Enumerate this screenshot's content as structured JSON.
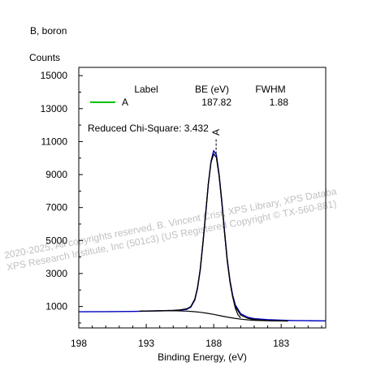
{
  "chart_data": {
    "type": "line",
    "title": "B, boron",
    "ylabel": "Counts",
    "xlabel": "Binding Energy, (eV)",
    "xlim": [
      198,
      179.7
    ],
    "x_reversed": true,
    "ylim": [
      -300,
      15500
    ],
    "x_ticks": [
      198,
      193,
      188,
      183
    ],
    "y_ticks": [
      1000,
      3000,
      5000,
      7000,
      9000,
      11000,
      13000,
      15000
    ],
    "legend": {
      "headers": [
        "Label",
        "BE (eV)",
        "FWHM"
      ],
      "rows": [
        {
          "label": "A",
          "be": "187.82",
          "fwhm": "1.88",
          "color": "#00c000"
        }
      ]
    },
    "reduced_chi_square": "Reduced Chi-Square: 3.432",
    "peak_marker": "A",
    "watermark": [
      "2020-2025,  All copyrights reserved,   B. Vincent Crist,  XPS Library, XPS Databa",
      "XPS Research Institute, Inc (501c3)   (US Registered Copyright © TX-560-881)"
    ],
    "series": [
      {
        "role": "data",
        "color": "#0000c0",
        "x": [
          198,
          196,
          194,
          193,
          192,
          191,
          190.5,
          190,
          189.7,
          189.4,
          189.2,
          189,
          188.8,
          188.6,
          188.4,
          188.2,
          188,
          187.8,
          187.6,
          187.4,
          187.2,
          187,
          186.8,
          186.6,
          186.4,
          186,
          185.5,
          185,
          184,
          183,
          182,
          181,
          179.7
        ],
        "y": [
          680,
          690,
          700,
          720,
          740,
          760,
          780,
          820,
          960,
          1400,
          2100,
          3200,
          4800,
          6600,
          8400,
          9800,
          10450,
          10200,
          9000,
          7400,
          5600,
          3900,
          2600,
          1700,
          1100,
          560,
          350,
          260,
          200,
          170,
          150,
          140,
          130
        ]
      },
      {
        "role": "envelope",
        "color": "#000000",
        "x": [
          193.5,
          193,
          192,
          191,
          190.5,
          190,
          189.7,
          189.4,
          189.2,
          189,
          188.8,
          188.6,
          188.4,
          188.2,
          188,
          187.8,
          187.6,
          187.4,
          187.2,
          187,
          186.8,
          186.6,
          186.4,
          186,
          185.5,
          185,
          184.5,
          184,
          183,
          182.5
        ],
        "y": [
          720,
          730,
          750,
          770,
          800,
          860,
          1000,
          1450,
          2150,
          3250,
          4850,
          6650,
          8450,
          9750,
          10250,
          10050,
          8900,
          7300,
          5500,
          3800,
          2500,
          1600,
          1000,
          480,
          290,
          210,
          175,
          150,
          130,
          120
        ]
      },
      {
        "role": "background",
        "color": "#000000",
        "x": [
          193.5,
          193,
          192,
          191,
          190,
          189.5,
          189,
          188.5,
          188,
          187.5,
          187,
          186.5,
          186,
          185.5,
          185,
          184.5,
          184,
          183,
          182.5
        ],
        "y": [
          720,
          725,
          735,
          745,
          720,
          690,
          650,
          590,
          520,
          440,
          360,
          290,
          230,
          190,
          165,
          150,
          140,
          125,
          120
        ]
      },
      {
        "role": "component",
        "name": "A",
        "color": "#000000",
        "x": [
          189.7,
          189.4,
          189.2,
          189,
          188.8,
          188.6,
          188.4,
          188.2,
          188,
          187.8,
          187.6,
          187.4,
          187.2,
          187,
          186.8,
          186.6,
          186.4,
          186.2,
          186
        ],
        "y": [
          1000,
          1450,
          2150,
          3250,
          4850,
          6650,
          8450,
          9750,
          10250,
          10050,
          8900,
          7300,
          5500,
          3800,
          2500,
          1600,
          900,
          500,
          300
        ]
      }
    ]
  }
}
